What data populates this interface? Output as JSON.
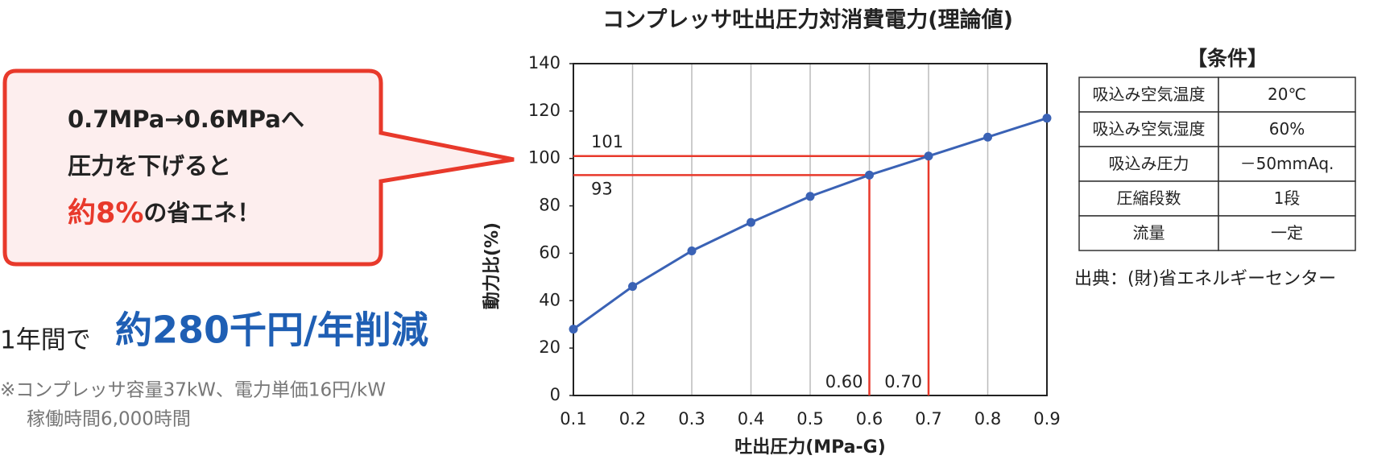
{
  "chart_data": {
    "type": "line",
    "title": "コンプレッサ吐出圧力対消費電力(理論値)",
    "x_label": "吐出圧力(MPa-G)",
    "y_label": "動力比(%)",
    "x": [
      0.1,
      0.2,
      0.3,
      0.4,
      0.5,
      0.6,
      0.7,
      0.8,
      0.9
    ],
    "values": [
      28,
      46,
      61,
      73,
      84,
      93,
      101,
      109,
      117
    ],
    "color": "#3a62b5",
    "xlim": [
      0.1,
      0.9
    ],
    "xticks": [
      0.1,
      0.2,
      0.3,
      0.4,
      0.5,
      0.6,
      0.7,
      0.8,
      0.9
    ],
    "ylim": [
      0,
      140
    ],
    "yticks": [
      0,
      20,
      40,
      60,
      80,
      100,
      120,
      140
    ],
    "grid": "x",
    "reference_lines": [
      {
        "x": 0.6,
        "x_label": "0.60",
        "y": 93
      },
      {
        "x": 0.7,
        "x_label": "0.70",
        "y": 101
      }
    ],
    "reference_color": "#e8392b"
  },
  "callout": {
    "line1": "0.7MPa→0.6MPaへ",
    "line2": "圧力を下げると",
    "highlight": "約8%",
    "line3_rest": "の省エネ！"
  },
  "savings": {
    "prefix": "1年間で",
    "amount": "約280千円/年削減"
  },
  "notes": [
    "※コンプレッサ容量37kW、電力単価16円/kW",
    "稼働時間6,000時間"
  ],
  "table": {
    "title": "【条件】",
    "rows": [
      [
        "吸込み空気温度",
        "20℃"
      ],
      [
        "吸込み空気湿度",
        "60%"
      ],
      [
        "吸込み圧力",
        "－50mmAq."
      ],
      [
        "圧縮段数",
        "1段"
      ],
      [
        "流量",
        "一定"
      ]
    ]
  },
  "source": "出典：(財)省エネルギーセンター"
}
